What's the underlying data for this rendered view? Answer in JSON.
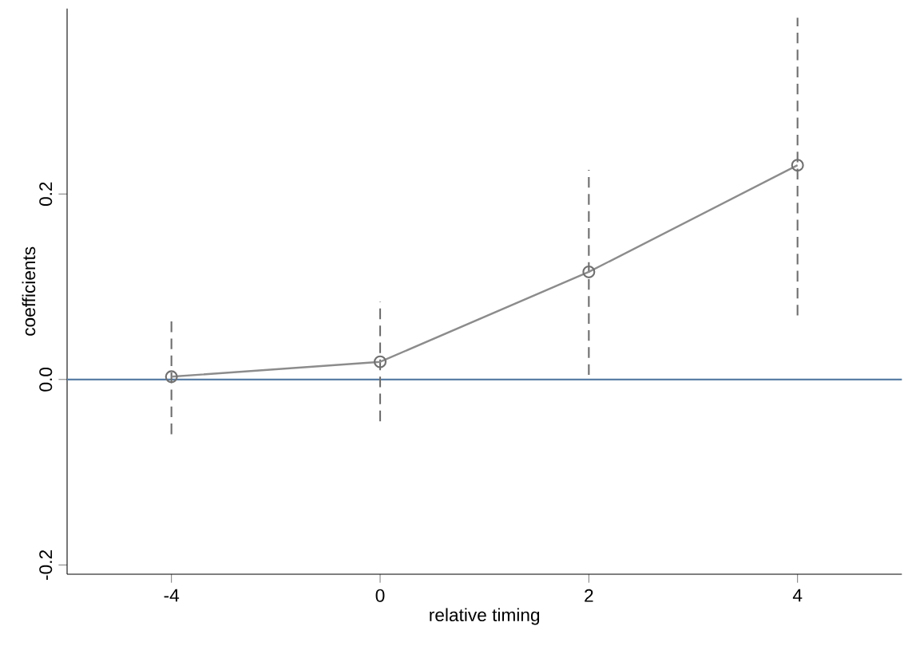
{
  "chart_data": {
    "type": "line",
    "xlabel": "relative timing",
    "ylabel": "coefficients",
    "categories": [
      "-4",
      "0",
      "2",
      "4"
    ],
    "series": [
      {
        "color": "#8c8c8c",
        "values": [
          0.003,
          0.019,
          0.116,
          0.231
        ],
        "errors": [
          [
            -0.059,
            0.065
          ],
          [
            -0.045,
            0.084
          ],
          [
            0.005,
            0.226
          ],
          [
            0.069,
            0.39
          ]
        ]
      }
    ],
    "ylim": [
      -0.21,
      0.4
    ],
    "yticks": [
      {
        "value": -0.2,
        "label": "-0.2"
      },
      {
        "value": 0,
        "label": "0.0"
      },
      {
        "value": 0.2,
        "label": "0.2"
      }
    ],
    "ref_lines": [
      {
        "axis": "y",
        "value": 0,
        "color": "#5b7fa6"
      }
    ],
    "marker": "circle",
    "line_style": "solid"
  }
}
